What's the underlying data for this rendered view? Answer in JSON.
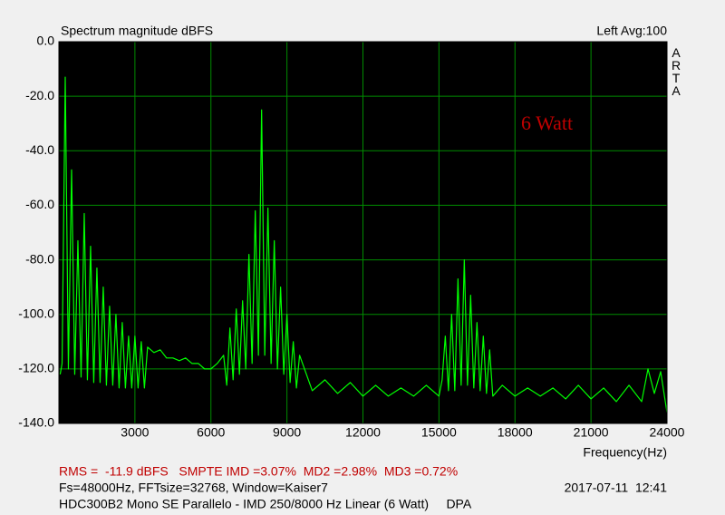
{
  "chart_data": {
    "type": "line",
    "title": "Spectrum magnitude dBFS",
    "channel_label": "Left  Avg:100",
    "brand": "ARTA",
    "annotation": "6 Watt",
    "x_label": "Frequency(Hz)",
    "footer_measurements": "RMS =  -11.9 dBFS   SMPTE IMD =3.07%  MD2 =2.98%  MD3 =0.72%",
    "footer_settings": "Fs=48000Hz, FFTsize=32768, Window=Kaiser7",
    "footer_date": "2017-07-11  12:41",
    "footer_description": "HDC300B2 Mono SE Parallelo - IMD 250/8000 Hz Linear (6 Watt)     DPA",
    "xlim": [
      0,
      24000
    ],
    "ylim": [
      -140,
      0
    ],
    "xticks": [
      3000,
      6000,
      9000,
      12000,
      15000,
      18000,
      21000,
      24000
    ],
    "yticks": [
      {
        "value": 0,
        "label": "0.0"
      },
      {
        "value": -20,
        "label": "-20.0"
      },
      {
        "value": -40,
        "label": "-40.0"
      },
      {
        "value": -60,
        "label": "-60.0"
      },
      {
        "value": -80,
        "label": "-80.0"
      },
      {
        "value": -100,
        "label": "-100.0"
      },
      {
        "value": -120,
        "label": "-120.0"
      },
      {
        "value": -140,
        "label": "-140.0"
      }
    ],
    "grid": true,
    "grid_color": "#008c00",
    "background": "#000000",
    "series": [
      {
        "color": "#00ff00",
        "x": [
          50,
          125,
          250,
          375,
          500,
          625,
          750,
          875,
          1000,
          1125,
          1250,
          1375,
          1500,
          1625,
          1750,
          1875,
          2000,
          2125,
          2250,
          2375,
          2500,
          2625,
          2750,
          2875,
          3000,
          3125,
          3250,
          3375,
          3500,
          3750,
          4000,
          4250,
          4500,
          4750,
          5000,
          5250,
          5500,
          5750,
          6000,
          6250,
          6500,
          6625,
          6750,
          6875,
          7000,
          7125,
          7250,
          7375,
          7500,
          7625,
          7750,
          7875,
          8000,
          8125,
          8250,
          8375,
          8500,
          8625,
          8750,
          8875,
          9000,
          9125,
          9250,
          9375,
          9500,
          10000,
          10500,
          11000,
          11500,
          12000,
          12500,
          13000,
          13500,
          14000,
          14500,
          15000,
          15125,
          15250,
          15375,
          15500,
          15625,
          15750,
          15875,
          16000,
          16125,
          16250,
          16375,
          16500,
          16625,
          16750,
          16875,
          17000,
          17125,
          17500,
          18000,
          18500,
          19000,
          19500,
          20000,
          20500,
          21000,
          21500,
          22000,
          22500,
          23000,
          23250,
          23500,
          23750,
          24000
        ],
        "values": [
          -122,
          -118,
          -13,
          -120,
          -47,
          -122,
          -73,
          -123,
          -63,
          -124,
          -75,
          -125,
          -83,
          -125,
          -90,
          -126,
          -97,
          -126,
          -100,
          -127,
          -103,
          -127,
          -108,
          -127,
          -108,
          -127,
          -110,
          -127,
          -112,
          -114,
          -113,
          -116,
          -116,
          -117,
          -116,
          -118,
          -118,
          -120,
          -120,
          -118,
          -115,
          -126,
          -105,
          -124,
          -98,
          -122,
          -95,
          -120,
          -78,
          -118,
          -62,
          -115,
          -25,
          -115,
          -61,
          -118,
          -73,
          -120,
          -90,
          -122,
          -100,
          -125,
          -110,
          -127,
          -115,
          -128,
          -124,
          -129,
          -125,
          -130,
          -126,
          -130,
          -127,
          -130,
          -126,
          -130,
          -124,
          -108,
          -128,
          -100,
          -128,
          -87,
          -126,
          -80,
          -126,
          -93,
          -127,
          -103,
          -128,
          -108,
          -129,
          -113,
          -130,
          -126,
          -130,
          -127,
          -130,
          -127,
          -131,
          -126,
          -131,
          -127,
          -132,
          -126,
          -132,
          -120,
          -129,
          -121,
          -136
        ]
      }
    ]
  }
}
